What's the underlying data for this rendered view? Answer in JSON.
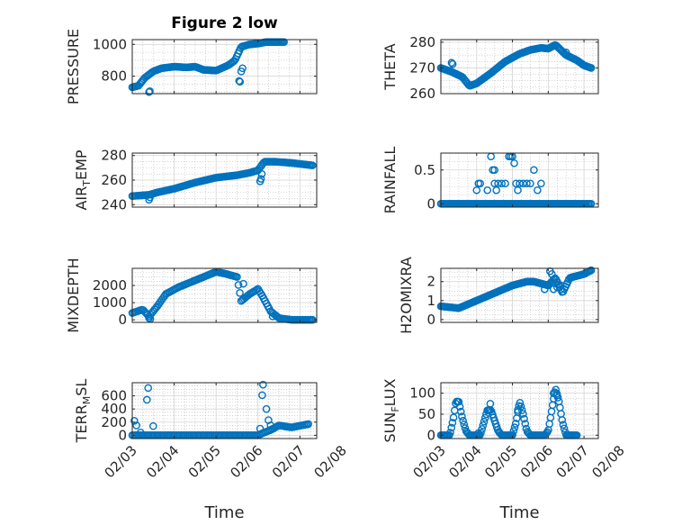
{
  "figure": {
    "title": "Figure 2 low",
    "marker_color": "#0072BD",
    "axis_color": "#262626",
    "grid_color": "#b8b8b8"
  },
  "chart_data": [
    {
      "id": "pressure",
      "type": "scatter",
      "title": "Figure 2 low",
      "ylabel": {
        "main": "PRESSURE",
        "sub": "",
        "rest": ""
      },
      "xlim": [
        0,
        4.4
      ],
      "ylim": [
        690,
        1030
      ],
      "yticks": [
        800,
        1000
      ],
      "ytick_labels": [
        "800",
        "1000"
      ],
      "xticks": [
        0,
        1,
        2,
        3,
        4,
        5
      ],
      "xtick_labels": [],
      "grid": true,
      "minor_grid": true,
      "keys": [
        [
          0,
          730
        ],
        [
          0.15,
          740
        ],
        [
          0.3,
          790
        ],
        [
          0.5,
          830
        ],
        [
          0.7,
          850
        ],
        [
          1.0,
          860
        ],
        [
          1.3,
          855
        ],
        [
          1.5,
          860
        ],
        [
          1.7,
          840
        ],
        [
          2.0,
          835
        ],
        [
          2.3,
          870
        ],
        [
          2.45,
          900
        ],
        [
          2.6,
          985
        ],
        [
          2.8,
          1000
        ],
        [
          3.0,
          1005
        ],
        [
          3.2,
          1015
        ],
        [
          3.6,
          1015
        ]
      ],
      "extra": [
        [
          0.4,
          700
        ],
        [
          0.42,
          705
        ],
        [
          2.55,
          770
        ],
        [
          2.57,
          765
        ],
        [
          2.6,
          830
        ],
        [
          2.63,
          850
        ]
      ],
      "point_range": [
        0,
        3.62
      ],
      "n": 120
    },
    {
      "id": "theta",
      "type": "scatter",
      "title": "",
      "ylabel": {
        "main": "THETA",
        "sub": "",
        "rest": ""
      },
      "xlim": [
        0,
        4.4
      ],
      "ylim": [
        260,
        281
      ],
      "yticks": [
        260,
        270,
        280
      ],
      "ytick_labels": [
        "260",
        "270",
        "280"
      ],
      "xticks": [
        0,
        1,
        2,
        3,
        4,
        5
      ],
      "xtick_labels": [],
      "grid": true,
      "minor_grid": true,
      "keys": [
        [
          0,
          270
        ],
        [
          0.3,
          268.5
        ],
        [
          0.6,
          266.5
        ],
        [
          0.8,
          263
        ],
        [
          1.0,
          264
        ],
        [
          1.4,
          268
        ],
        [
          1.8,
          272.5
        ],
        [
          2.2,
          275.5
        ],
        [
          2.5,
          277
        ],
        [
          2.8,
          277.8
        ],
        [
          3.0,
          277.5
        ],
        [
          3.2,
          279
        ],
        [
          3.5,
          275
        ],
        [
          3.8,
          273
        ],
        [
          4.0,
          271
        ],
        [
          4.2,
          270
        ]
      ],
      "extra": [
        [
          0.3,
          272
        ],
        [
          0.33,
          271.5
        ],
        [
          3.5,
          276
        ]
      ],
      "point_range": [
        0,
        4.2
      ],
      "n": 130
    },
    {
      "id": "air_temp",
      "type": "scatter",
      "title": "",
      "ylabel": {
        "main": "AIR",
        "sub": "T",
        "rest": "EMP"
      },
      "xlim": [
        0,
        4.4
      ],
      "ylim": [
        238,
        282
      ],
      "yticks": [
        240,
        260,
        280
      ],
      "ytick_labels": [
        "240",
        "260",
        "280"
      ],
      "xticks": [
        0,
        1,
        2,
        3,
        4,
        5
      ],
      "xtick_labels": [],
      "grid": true,
      "minor_grid": true,
      "keys": [
        [
          0,
          247
        ],
        [
          0.4,
          248
        ],
        [
          0.6,
          250
        ],
        [
          1.0,
          253
        ],
        [
          1.5,
          258
        ],
        [
          2.0,
          262
        ],
        [
          2.5,
          264
        ],
        [
          2.8,
          266
        ],
        [
          3.0,
          268
        ],
        [
          3.15,
          275
        ],
        [
          3.4,
          275
        ],
        [
          3.8,
          274
        ],
        [
          4.3,
          272
        ]
      ],
      "extra": [
        [
          0.4,
          244
        ],
        [
          0.42,
          246
        ],
        [
          3.05,
          259
        ],
        [
          3.07,
          261
        ],
        [
          3.09,
          265
        ]
      ],
      "point_range": [
        0,
        4.3
      ],
      "n": 130
    },
    {
      "id": "rainfall",
      "type": "scatter",
      "title": "",
      "ylabel": {
        "main": "RAINFALL",
        "sub": "",
        "rest": ""
      },
      "xlim": [
        0,
        4.4
      ],
      "ylim": [
        -0.05,
        0.75
      ],
      "yticks": [
        0,
        0.5
      ],
      "ytick_labels": [
        "0",
        "0.5"
      ],
      "xticks": [
        0,
        1,
        2,
        3,
        4,
        5
      ],
      "xtick_labels": [],
      "grid": true,
      "minor_grid": true,
      "keys": [
        [
          0,
          0
        ],
        [
          4.2,
          0
        ]
      ],
      "extra": [
        [
          1.0,
          0.2
        ],
        [
          1.05,
          0.3
        ],
        [
          1.1,
          0.3
        ],
        [
          1.4,
          0.7
        ],
        [
          1.45,
          0.5
        ],
        [
          1.5,
          0.5
        ],
        [
          1.5,
          0.3
        ],
        [
          1.6,
          0.3
        ],
        [
          1.7,
          0.3
        ],
        [
          1.8,
          0.3
        ],
        [
          1.9,
          0.7
        ],
        [
          1.95,
          0.7
        ],
        [
          2.0,
          0.7
        ],
        [
          2.05,
          0.6
        ],
        [
          2.1,
          0.3
        ],
        [
          2.2,
          0.3
        ],
        [
          2.3,
          0.3
        ],
        [
          2.4,
          0.3
        ],
        [
          2.5,
          0.3
        ],
        [
          2.6,
          0.5
        ],
        [
          2.7,
          0.2
        ],
        [
          2.8,
          0.3
        ],
        [
          1.3,
          0.2
        ],
        [
          1.55,
          0.2
        ],
        [
          2.15,
          0.2
        ]
      ],
      "point_range": [
        0,
        4.2
      ],
      "n": 110
    },
    {
      "id": "mixdepth",
      "type": "scatter",
      "title": "",
      "ylabel": {
        "main": "MIXDEPTH",
        "sub": "",
        "rest": ""
      },
      "xlim": [
        0,
        4.4
      ],
      "ylim": [
        -150,
        3000
      ],
      "yticks": [
        0,
        1000,
        2000
      ],
      "ytick_labels": [
        "0",
        "1000",
        "2000"
      ],
      "xticks": [
        0,
        1,
        2,
        3,
        4,
        5
      ],
      "xtick_labels": [],
      "grid": true,
      "minor_grid": true,
      "keys": [
        [
          0,
          400
        ],
        [
          0.25,
          600
        ],
        [
          0.4,
          200
        ],
        [
          0.6,
          800
        ],
        [
          0.8,
          1500
        ],
        [
          1.1,
          1900
        ],
        [
          1.4,
          2200
        ],
        [
          1.7,
          2500
        ],
        [
          2.0,
          2800
        ],
        [
          2.2,
          2700
        ],
        [
          2.5,
          2500
        ],
        [
          2.6,
          1100
        ],
        [
          2.8,
          1500
        ],
        [
          3.0,
          1800
        ],
        [
          3.1,
          1400
        ],
        [
          3.3,
          500
        ],
        [
          3.5,
          100
        ],
        [
          3.8,
          0
        ],
        [
          4.3,
          0
        ]
      ],
      "extra": [
        [
          0.4,
          100
        ],
        [
          0.43,
          50
        ],
        [
          2.65,
          2100
        ],
        [
          3.35,
          200
        ]
      ],
      "point_range": [
        0,
        4.3
      ],
      "n": 130
    },
    {
      "id": "h2omixra",
      "type": "scatter",
      "title": "",
      "ylabel": {
        "main": "H2OMIXRA",
        "sub": "",
        "rest": ""
      },
      "xlim": [
        0,
        4.4
      ],
      "ylim": [
        -0.15,
        2.7
      ],
      "yticks": [
        0,
        1,
        2
      ],
      "ytick_labels": [
        "0",
        "1",
        "2"
      ],
      "xticks": [
        0,
        1,
        2,
        3,
        4,
        5
      ],
      "xtick_labels": [],
      "grid": true,
      "minor_grid": true,
      "keys": [
        [
          0,
          0.7
        ],
        [
          0.5,
          0.6
        ],
        [
          1.0,
          1.0
        ],
        [
          1.5,
          1.4
        ],
        [
          2.0,
          1.8
        ],
        [
          2.4,
          2.0
        ],
        [
          2.6,
          2.0
        ],
        [
          3.0,
          1.8
        ],
        [
          3.2,
          2.2
        ],
        [
          3.4,
          1.4
        ],
        [
          3.6,
          2.2
        ],
        [
          3.8,
          2.3
        ],
        [
          4.0,
          2.4
        ],
        [
          4.2,
          2.6
        ]
      ],
      "extra": [
        [
          3.05,
          2.55
        ],
        [
          3.1,
          2.4
        ],
        [
          3.15,
          1.6
        ],
        [
          3.25,
          1.7
        ],
        [
          3.35,
          1.8
        ],
        [
          2.9,
          1.6
        ]
      ],
      "point_range": [
        0,
        4.2
      ],
      "n": 130
    },
    {
      "id": "terr_msl",
      "type": "scatter",
      "title": "",
      "ylabel": {
        "main": "TERR",
        "sub": "M",
        "rest": "SL"
      },
      "xlim": [
        0,
        4.4
      ],
      "ylim": [
        -50,
        800
      ],
      "yticks": [
        0,
        200,
        400,
        600
      ],
      "ytick_labels": [
        "0",
        "200",
        "400",
        "600"
      ],
      "xticks": [
        0,
        1,
        2,
        3,
        4,
        5
      ],
      "xtick_labels": [
        "02/03",
        "02/04",
        "02/05",
        "02/06",
        "02/07",
        "02/08"
      ],
      "xlabel": "Time",
      "grid": true,
      "minor_grid": true,
      "keys": [
        [
          0,
          0
        ],
        [
          3.0,
          0
        ],
        [
          3.1,
          30
        ],
        [
          3.3,
          80
        ],
        [
          3.5,
          150
        ],
        [
          3.8,
          120
        ],
        [
          4.2,
          170
        ]
      ],
      "extra": [
        [
          0.05,
          220
        ],
        [
          0.1,
          150
        ],
        [
          0.2,
          40
        ],
        [
          0.35,
          540
        ],
        [
          0.38,
          720
        ],
        [
          0.5,
          140
        ],
        [
          3.05,
          100
        ],
        [
          3.1,
          610
        ],
        [
          3.12,
          770
        ],
        [
          3.2,
          400
        ],
        [
          3.25,
          230
        ],
        [
          3.3,
          150
        ]
      ],
      "point_range": [
        0,
        4.2
      ],
      "n": 120
    },
    {
      "id": "sun_flux",
      "type": "scatter",
      "title": "",
      "ylabel": {
        "main": "SUN",
        "sub": "F",
        "rest": "LUX"
      },
      "xlim": [
        0,
        4.4
      ],
      "ylim": [
        -8,
        125
      ],
      "yticks": [
        0,
        50,
        100
      ],
      "ytick_labels": [
        "0",
        "50",
        "100"
      ],
      "xticks": [
        0,
        1,
        2,
        3,
        4,
        5
      ],
      "xtick_labels": [
        "02/03",
        "02/04",
        "02/05",
        "02/06",
        "02/07",
        "02/08"
      ],
      "xlabel": "Time",
      "grid": true,
      "minor_grid": true,
      "keys": [
        [
          0,
          0
        ],
        [
          0.25,
          0
        ],
        [
          0.35,
          40
        ],
        [
          0.42,
          80
        ],
        [
          0.5,
          80
        ],
        [
          0.6,
          40
        ],
        [
          0.7,
          10
        ],
        [
          0.8,
          0
        ],
        [
          1.1,
          0
        ],
        [
          1.2,
          30
        ],
        [
          1.3,
          60
        ],
        [
          1.4,
          60
        ],
        [
          1.5,
          35
        ],
        [
          1.6,
          10
        ],
        [
          1.7,
          0
        ],
        [
          2.0,
          0
        ],
        [
          2.1,
          30
        ],
        [
          2.2,
          80
        ],
        [
          2.3,
          50
        ],
        [
          2.4,
          10
        ],
        [
          2.5,
          0
        ],
        [
          2.9,
          0
        ],
        [
          3.0,
          10
        ],
        [
          3.1,
          60
        ],
        [
          3.2,
          112
        ],
        [
          3.3,
          80
        ],
        [
          3.4,
          30
        ],
        [
          3.5,
          0
        ],
        [
          3.8,
          0
        ]
      ],
      "extra": [
        [
          1.05,
          5
        ],
        [
          1.38,
          75
        ],
        [
          2.15,
          60
        ],
        [
          3.15,
          100
        ],
        [
          3.25,
          95
        ]
      ],
      "point_range": [
        0,
        3.8
      ],
      "n": 130
    }
  ]
}
